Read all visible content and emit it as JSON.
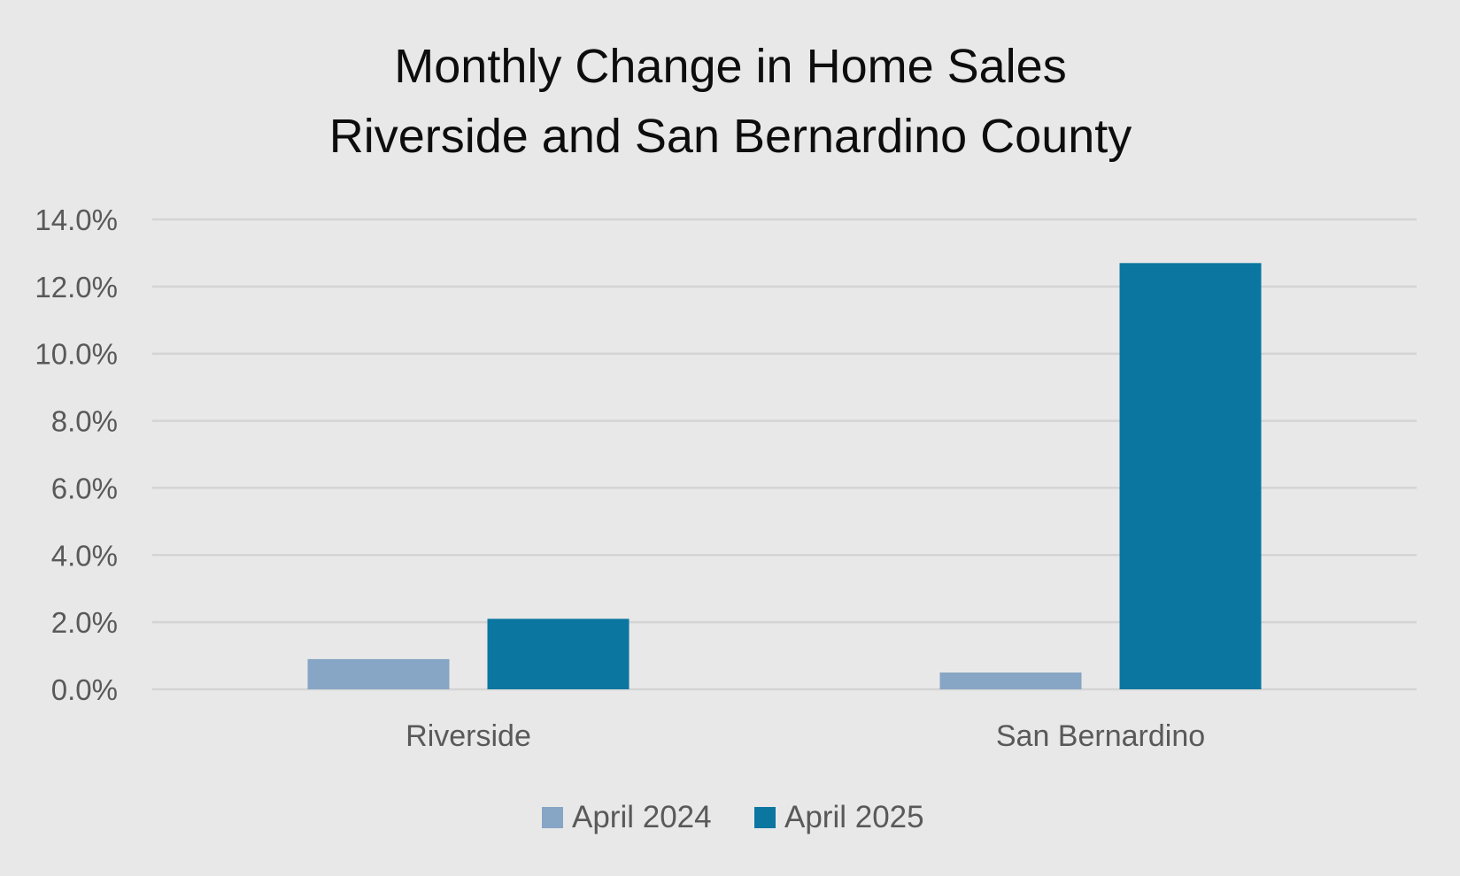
{
  "chart_data": {
    "type": "bar",
    "title": [
      "Monthly Change in Home Sales",
      "Riverside and San Bernardino County"
    ],
    "xlabel": "",
    "ylabel": "",
    "categories": [
      "Riverside",
      "San Bernardino"
    ],
    "series": [
      {
        "name": "April 2024",
        "values": [
          0.9,
          0.5
        ],
        "color": "#87a5c4"
      },
      {
        "name": "April 2025",
        "values": [
          2.1,
          12.7
        ],
        "color": "#0b76a0"
      }
    ],
    "ylim": [
      0,
      14
    ],
    "y_ticks": [
      0,
      2,
      4,
      6,
      8,
      10,
      12,
      14
    ],
    "y_tick_labels": [
      "0.0%",
      "2.0%",
      "4.0%",
      "6.0%",
      "8.0%",
      "10.0%",
      "12.0%",
      "14.0%"
    ],
    "grid": true,
    "legend_position": "bottom-center"
  }
}
